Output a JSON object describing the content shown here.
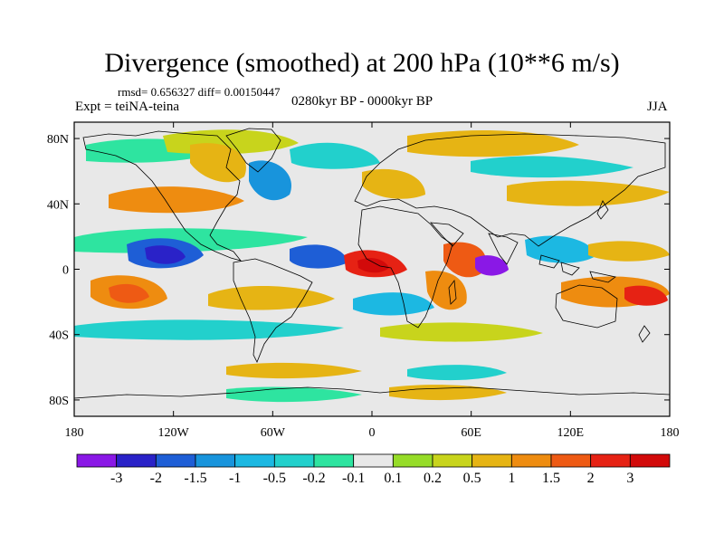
{
  "title": "Divergence (smoothed) at 200 hPa (10**6 m/s)",
  "stats": "rmsd= 0.656327 diff= 0.00150447",
  "experiment": "Expt = teiNA-teina",
  "period": "0280kyr BP - 0000kyr BP",
  "season": "JJA",
  "axes": {
    "y_ticks": [
      {
        "value": 80,
        "label": "80N"
      },
      {
        "value": 40,
        "label": "40N"
      },
      {
        "value": 0,
        "label": "0"
      },
      {
        "value": -40,
        "label": "40S"
      },
      {
        "value": -80,
        "label": "80S"
      }
    ],
    "x_ticks": [
      {
        "value": -180,
        "label": "180"
      },
      {
        "value": -120,
        "label": "120W"
      },
      {
        "value": -60,
        "label": "60W"
      },
      {
        "value": 0,
        "label": "0"
      },
      {
        "value": 60,
        "label": "60E"
      },
      {
        "value": 120,
        "label": "120E"
      },
      {
        "value": 180,
        "label": "180"
      }
    ]
  },
  "colorbar": {
    "labels": [
      "-3",
      "-2",
      "-1.5",
      "-1",
      "-0.5",
      "-0.2",
      "-0.1",
      "0.1",
      "0.2",
      "0.5",
      "1",
      "1.5",
      "2",
      "3"
    ],
    "colors": [
      "#8a18e6",
      "#2a22c8",
      "#1e5ed6",
      "#1894dc",
      "#1cb8e2",
      "#22d0cc",
      "#2ee4a0",
      "#e8e8e8",
      "#96dc28",
      "#c8d41c",
      "#e6b414",
      "#ee8c10",
      "#ee5a14",
      "#e62214",
      "#d20a0a"
    ]
  },
  "colors": {
    "ocean_background": "#e8e8e8",
    "coastline": "#000000"
  }
}
